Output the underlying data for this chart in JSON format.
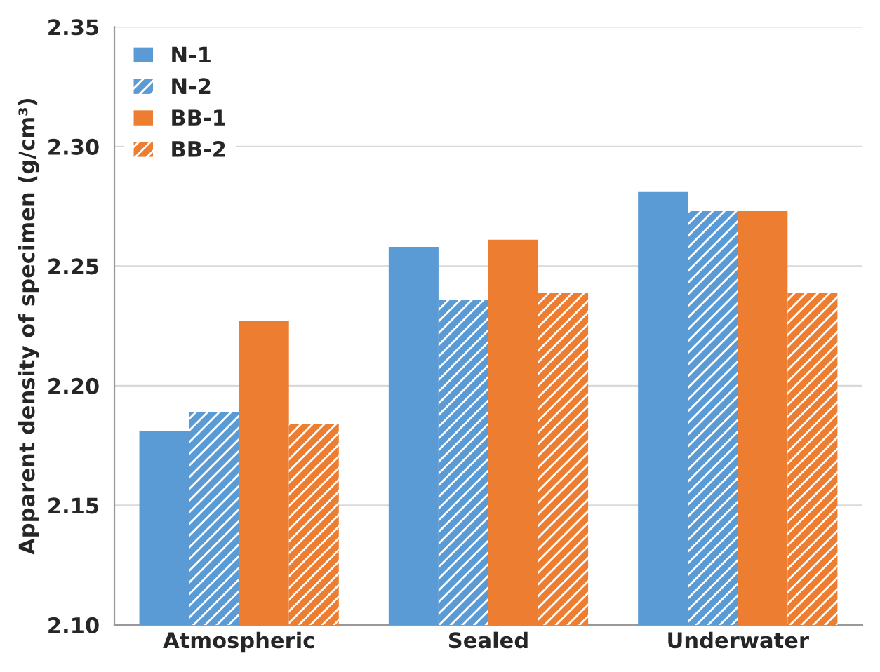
{
  "chart_data": {
    "type": "bar",
    "categories": [
      "Atmospheric",
      "Sealed",
      "Underwater"
    ],
    "ylabel": "Apparent density of specimen (g/cm³)",
    "series": [
      {
        "name": "N-1",
        "color": "#5b9bd5",
        "values": [
          2.181,
          2.258,
          2.281
        ]
      },
      {
        "name": "N-2",
        "color": "#5b9bd5",
        "values": [
          2.189,
          2.236,
          2.273
        ]
      },
      {
        "name": "BB-1",
        "color": "#ed7d31",
        "values": [
          2.227,
          2.261,
          2.273
        ]
      },
      {
        "name": "BB-2",
        "color": "#ed7d31",
        "values": [
          2.184,
          2.239,
          2.239
        ]
      }
    ],
    "ylim": [
      2.1,
      2.35
    ],
    "yticks": [
      {
        "value": 2.1,
        "label": "2.10"
      },
      {
        "value": 2.15,
        "label": "2.15"
      },
      {
        "value": 2.2,
        "label": "2.20"
      },
      {
        "value": 2.25,
        "label": "2.25"
      },
      {
        "value": 2.3,
        "label": "2.30"
      },
      {
        "value": 2.35,
        "label": "2.35"
      }
    ],
    "grid": "y",
    "legend": "top left"
  }
}
